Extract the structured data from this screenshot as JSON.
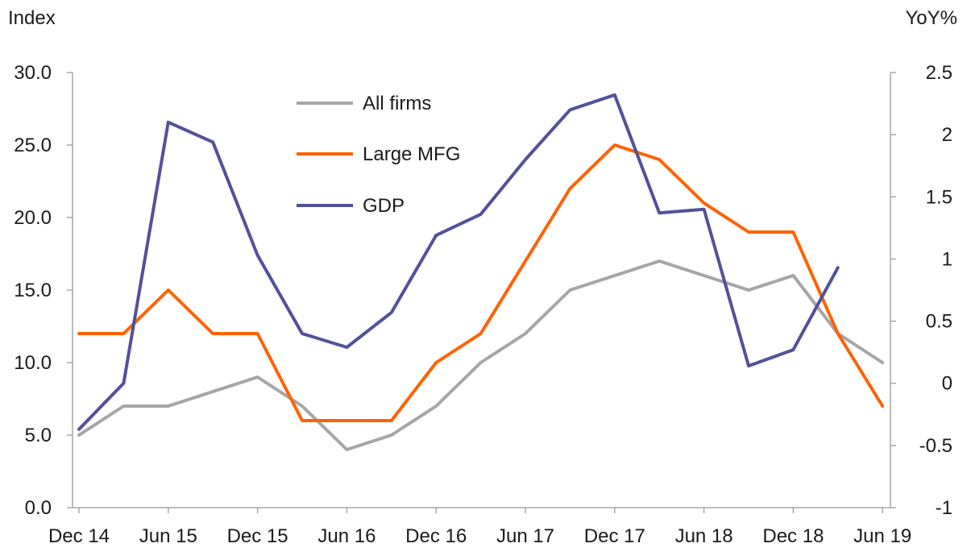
{
  "chart_data": {
    "type": "line",
    "y_left_label": "Index",
    "y_right_label": "YoY%",
    "x_tick_labels": [
      "Dec 14",
      "Jun 15",
      "Dec 15",
      "Jun 16",
      "Dec 16",
      "Jun 17",
      "Dec 17",
      "Jun 18",
      "Dec 18",
      "Jun 19"
    ],
    "y_left_ticks": [
      "0.0",
      "5.0",
      "10.0",
      "15.0",
      "20.0",
      "25.0",
      "30.0"
    ],
    "y_right_ticks": [
      "-1",
      "-0.5",
      "0",
      "0.5",
      "1",
      "1.5",
      "2",
      "2.5"
    ],
    "y_left_range": [
      0,
      30
    ],
    "y_right_range": [
      -1,
      2.5
    ],
    "x": [
      "Dec 14",
      "Mar 15",
      "Jun 15",
      "Sep 15",
      "Dec 15",
      "Mar 16",
      "Jun 16",
      "Sep 16",
      "Dec 16",
      "Mar 17",
      "Jun 17",
      "Sep 17",
      "Dec 17",
      "Mar 18",
      "Jun 18",
      "Sep 18",
      "Dec 18",
      "Mar 19",
      "Jun 19"
    ],
    "series": [
      {
        "name": "All firms",
        "axis": "left",
        "color": "#a6a6a6",
        "values": [
          5,
          7,
          7,
          8,
          9,
          7,
          4,
          5,
          7,
          10,
          12,
          15,
          16,
          17,
          16,
          15,
          16,
          12,
          10
        ]
      },
      {
        "name": "Large MFG",
        "axis": "left",
        "color": "#ff6200",
        "values": [
          12,
          12,
          15,
          12,
          12,
          6,
          6,
          6,
          10,
          12,
          17,
          22,
          25,
          24,
          21,
          19,
          19,
          12,
          7
        ]
      },
      {
        "name": "GDP",
        "axis": "right",
        "color": "#525199",
        "values": [
          -0.37,
          0.0,
          2.1,
          1.94,
          1.03,
          0.4,
          0.29,
          0.57,
          1.19,
          1.36,
          1.8,
          2.2,
          2.32,
          1.37,
          1.4,
          0.14,
          0.27,
          0.93,
          null
        ]
      }
    ],
    "legend_position": "top-left-center",
    "grid": false
  }
}
